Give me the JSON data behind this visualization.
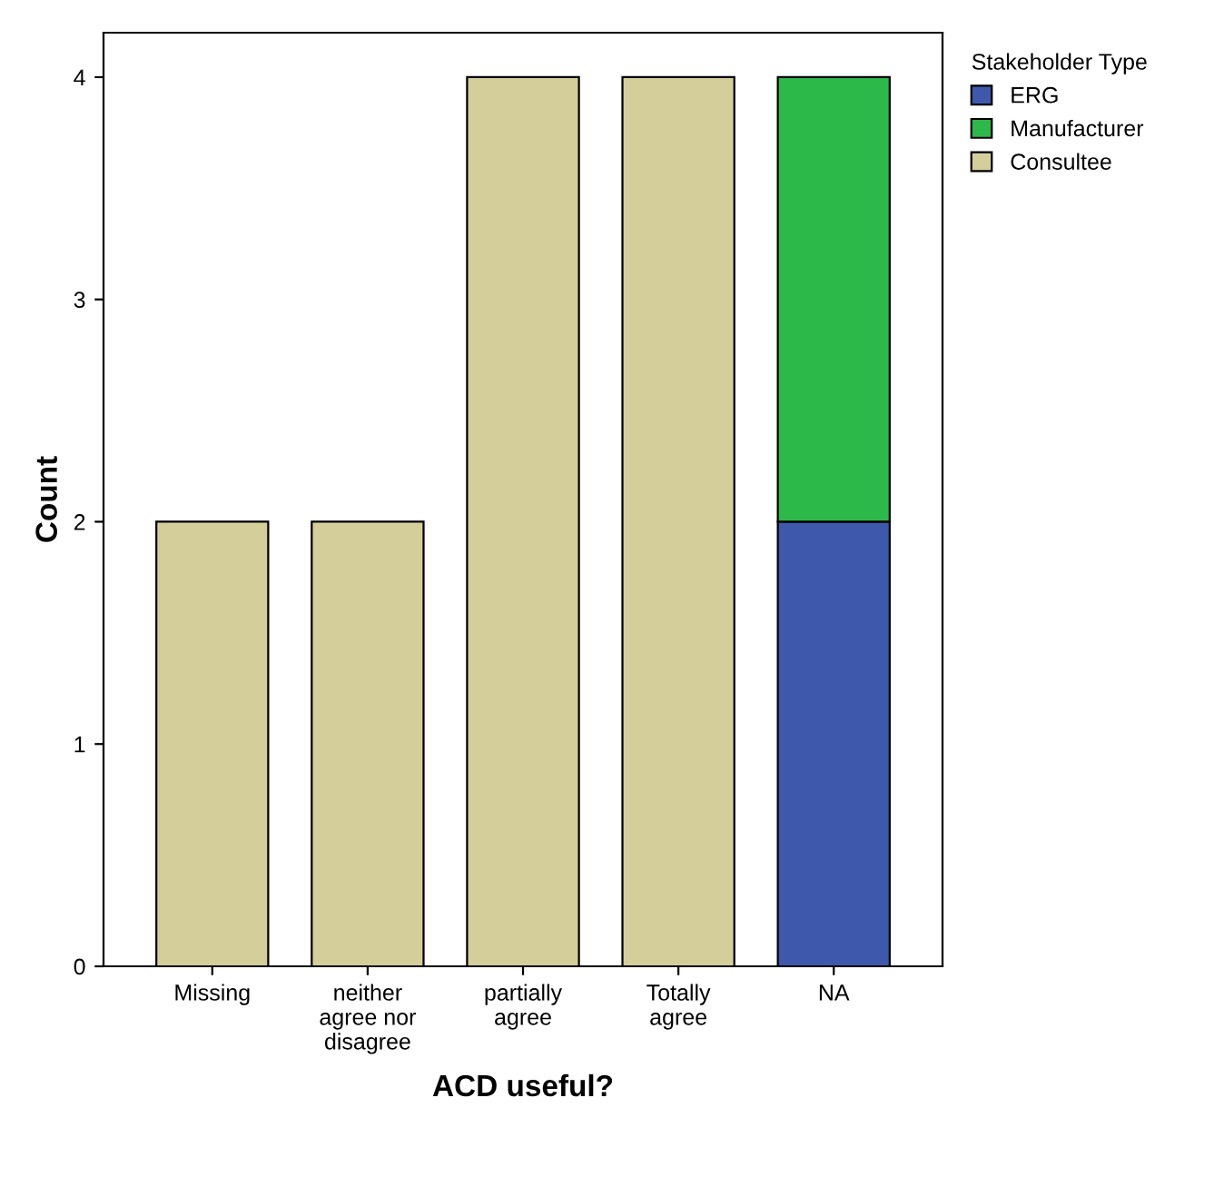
{
  "chart_data": {
    "type": "bar",
    "stacked": true,
    "xlabel": "ACD useful?",
    "ylabel": "Count",
    "legend_title": "Stakeholder Type",
    "legend": "top right",
    "grid": false,
    "categories": [
      "Missing",
      "neither\nagree nor\ndisagree",
      "partially\nagree",
      "Totally\nagree",
      "NA"
    ],
    "ylim": [
      0,
      4.2
    ],
    "yticks": [
      0,
      1,
      2,
      3,
      4
    ],
    "series": [
      {
        "name": "ERG",
        "color": "#3e58ac",
        "values": [
          null,
          null,
          null,
          null,
          2
        ]
      },
      {
        "name": "Manufacturer",
        "color": "#2db84a",
        "values": [
          null,
          null,
          null,
          null,
          2
        ]
      },
      {
        "name": "Consultee",
        "color": "#d4ce9a",
        "values": [
          2,
          2,
          4,
          4,
          null
        ]
      }
    ]
  }
}
